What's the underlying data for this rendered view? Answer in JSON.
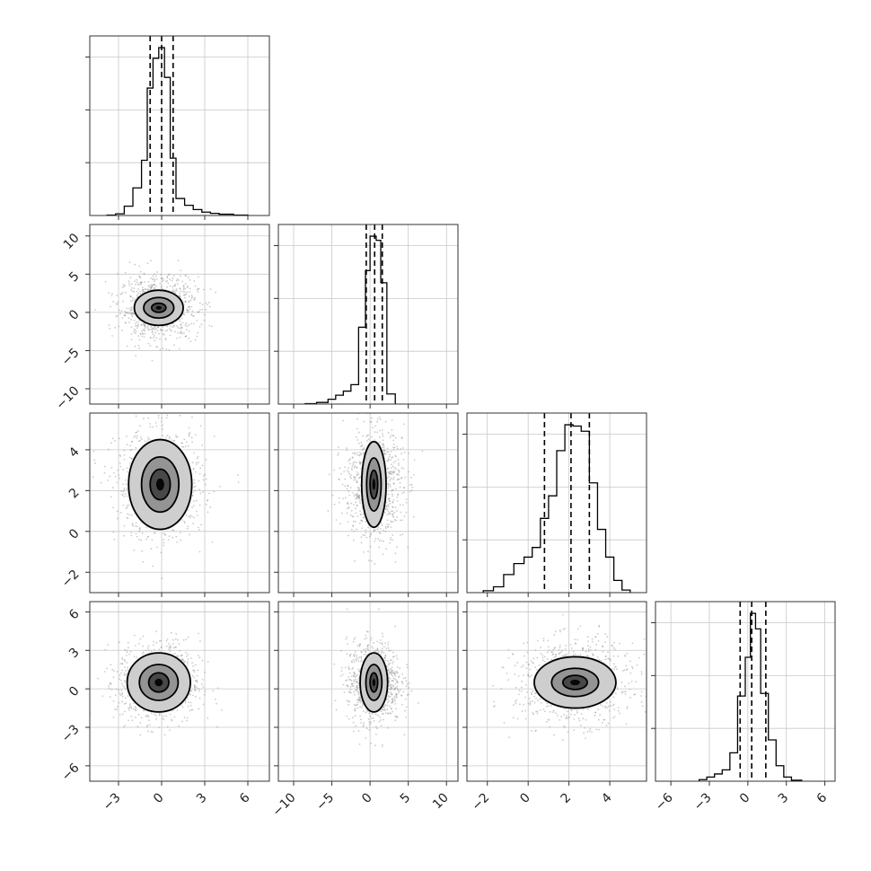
{
  "chart_data": {
    "type": "corner",
    "n_params": 4,
    "colors": {
      "line": "#000000",
      "points": "#8c8c8c",
      "grid": "#c8c8c8",
      "fills": [
        "#f7f7f7",
        "#c9c9c9",
        "#8e8e8e",
        "#3f3f3f",
        "#000000"
      ]
    },
    "grid": true,
    "params": [
      {
        "range": [
          -5,
          7.5
        ],
        "ticks": [
          -3,
          0,
          3,
          6
        ],
        "tick_labels": [
          "−3",
          "0",
          "3",
          "6"
        ],
        "quantiles": [
          -0.8,
          0.0,
          0.8
        ],
        "hist": {
          "edges": [
            -3.8,
            -3.2,
            -2.6,
            -2.0,
            -1.4,
            -1.0,
            -0.6,
            -0.2,
            0.2,
            0.6,
            1.0,
            1.6,
            2.2,
            2.8,
            3.4,
            4.0,
            5.0,
            6.0
          ],
          "counts": [
            1,
            4,
            22,
            65,
            130,
            300,
            370,
            395,
            325,
            135,
            40,
            24,
            14,
            8,
            5,
            3,
            1
          ]
        }
      },
      {
        "range": [
          -12,
          11.5
        ],
        "ticks": [
          -10,
          -5,
          0,
          5,
          10
        ],
        "tick_labels": [
          "−10",
          "−5",
          "0",
          "5",
          "10"
        ],
        "quantiles": [
          -0.5,
          0.6,
          1.6
        ],
        "hist": {
          "edges": [
            -8.5,
            -7.0,
            -5.5,
            -4.5,
            -3.5,
            -2.5,
            -1.5,
            -0.6,
            0.0,
            0.8,
            1.4,
            2.2,
            3.3
          ],
          "counts": [
            1,
            4,
            12,
            22,
            32,
            48,
            190,
            330,
            415,
            405,
            300,
            25
          ]
        }
      },
      {
        "range": [
          -3,
          5.8
        ],
        "ticks": [
          -2,
          0,
          2,
          4
        ],
        "tick_labels": [
          "−2",
          "0",
          "2",
          "4"
        ],
        "quantiles": [
          0.8,
          2.1,
          3.0
        ],
        "hist": {
          "edges": [
            -2.2,
            -1.7,
            -1.2,
            -0.7,
            -0.2,
            0.2,
            0.6,
            1.0,
            1.4,
            1.8,
            2.2,
            2.6,
            3.0,
            3.4,
            3.8,
            4.2,
            4.6,
            5.0
          ],
          "counts": [
            3,
            9,
            28,
            45,
            55,
            70,
            115,
            150,
            220,
            260,
            258,
            250,
            170,
            98,
            55,
            19,
            4
          ]
        }
      },
      {
        "range": [
          -7.2,
          6.8
        ],
        "ticks": [
          -6,
          -3,
          0,
          3,
          6
        ],
        "tick_labels": [
          "−6",
          "−3",
          "0",
          "3",
          "6"
        ],
        "quantiles": [
          -0.6,
          0.3,
          1.4
        ],
        "hist": {
          "edges": [
            -3.8,
            -3.2,
            -2.6,
            -2.0,
            -1.4,
            -0.8,
            -0.2,
            0.2,
            0.6,
            1.0,
            1.6,
            2.2,
            2.8,
            3.4,
            4.2
          ],
          "counts": [
            3,
            8,
            14,
            22,
            55,
            165,
            240,
            325,
            295,
            170,
            80,
            30,
            8,
            2
          ]
        }
      }
    ],
    "pairs": [
      {
        "row": 1,
        "col": 0,
        "mean": [
          -0.2,
          0.6
        ],
        "sigma": [
          0.85,
          1.3
        ],
        "levels": [
          [
            1.7,
            2.3
          ],
          [
            1.05,
            1.35
          ],
          [
            0.5,
            0.6
          ]
        ]
      },
      {
        "row": 2,
        "col": 0,
        "mean": [
          -0.1,
          2.3
        ],
        "sigma": [
          0.95,
          0.85
        ],
        "levels": [
          [
            2.2,
            2.2
          ],
          [
            1.3,
            1.35
          ],
          [
            0.7,
            0.75
          ]
        ]
      },
      {
        "row": 2,
        "col": 1,
        "mean": [
          0.5,
          2.3
        ],
        "sigma": [
          1.2,
          0.85
        ],
        "levels": [
          [
            1.6,
            2.1
          ],
          [
            0.95,
            1.3
          ],
          [
            0.5,
            0.7
          ]
        ]
      },
      {
        "row": 3,
        "col": 0,
        "mean": [
          -0.2,
          0.5
        ],
        "sigma": [
          0.9,
          1.0
        ],
        "levels": [
          [
            2.2,
            2.3
          ],
          [
            1.35,
            1.4
          ],
          [
            0.7,
            0.75
          ]
        ]
      },
      {
        "row": 3,
        "col": 1,
        "mean": [
          0.5,
          0.5
        ],
        "sigma": [
          1.1,
          1.0
        ],
        "levels": [
          [
            1.8,
            2.3
          ],
          [
            1.05,
            1.4
          ],
          [
            0.5,
            0.75
          ]
        ]
      },
      {
        "row": 3,
        "col": 2,
        "mean": [
          2.3,
          0.5
        ],
        "sigma": [
          0.9,
          1.0
        ],
        "levels": [
          [
            2.0,
            2.0
          ],
          [
            1.15,
            1.1
          ],
          [
            0.6,
            0.55
          ]
        ]
      }
    ]
  }
}
